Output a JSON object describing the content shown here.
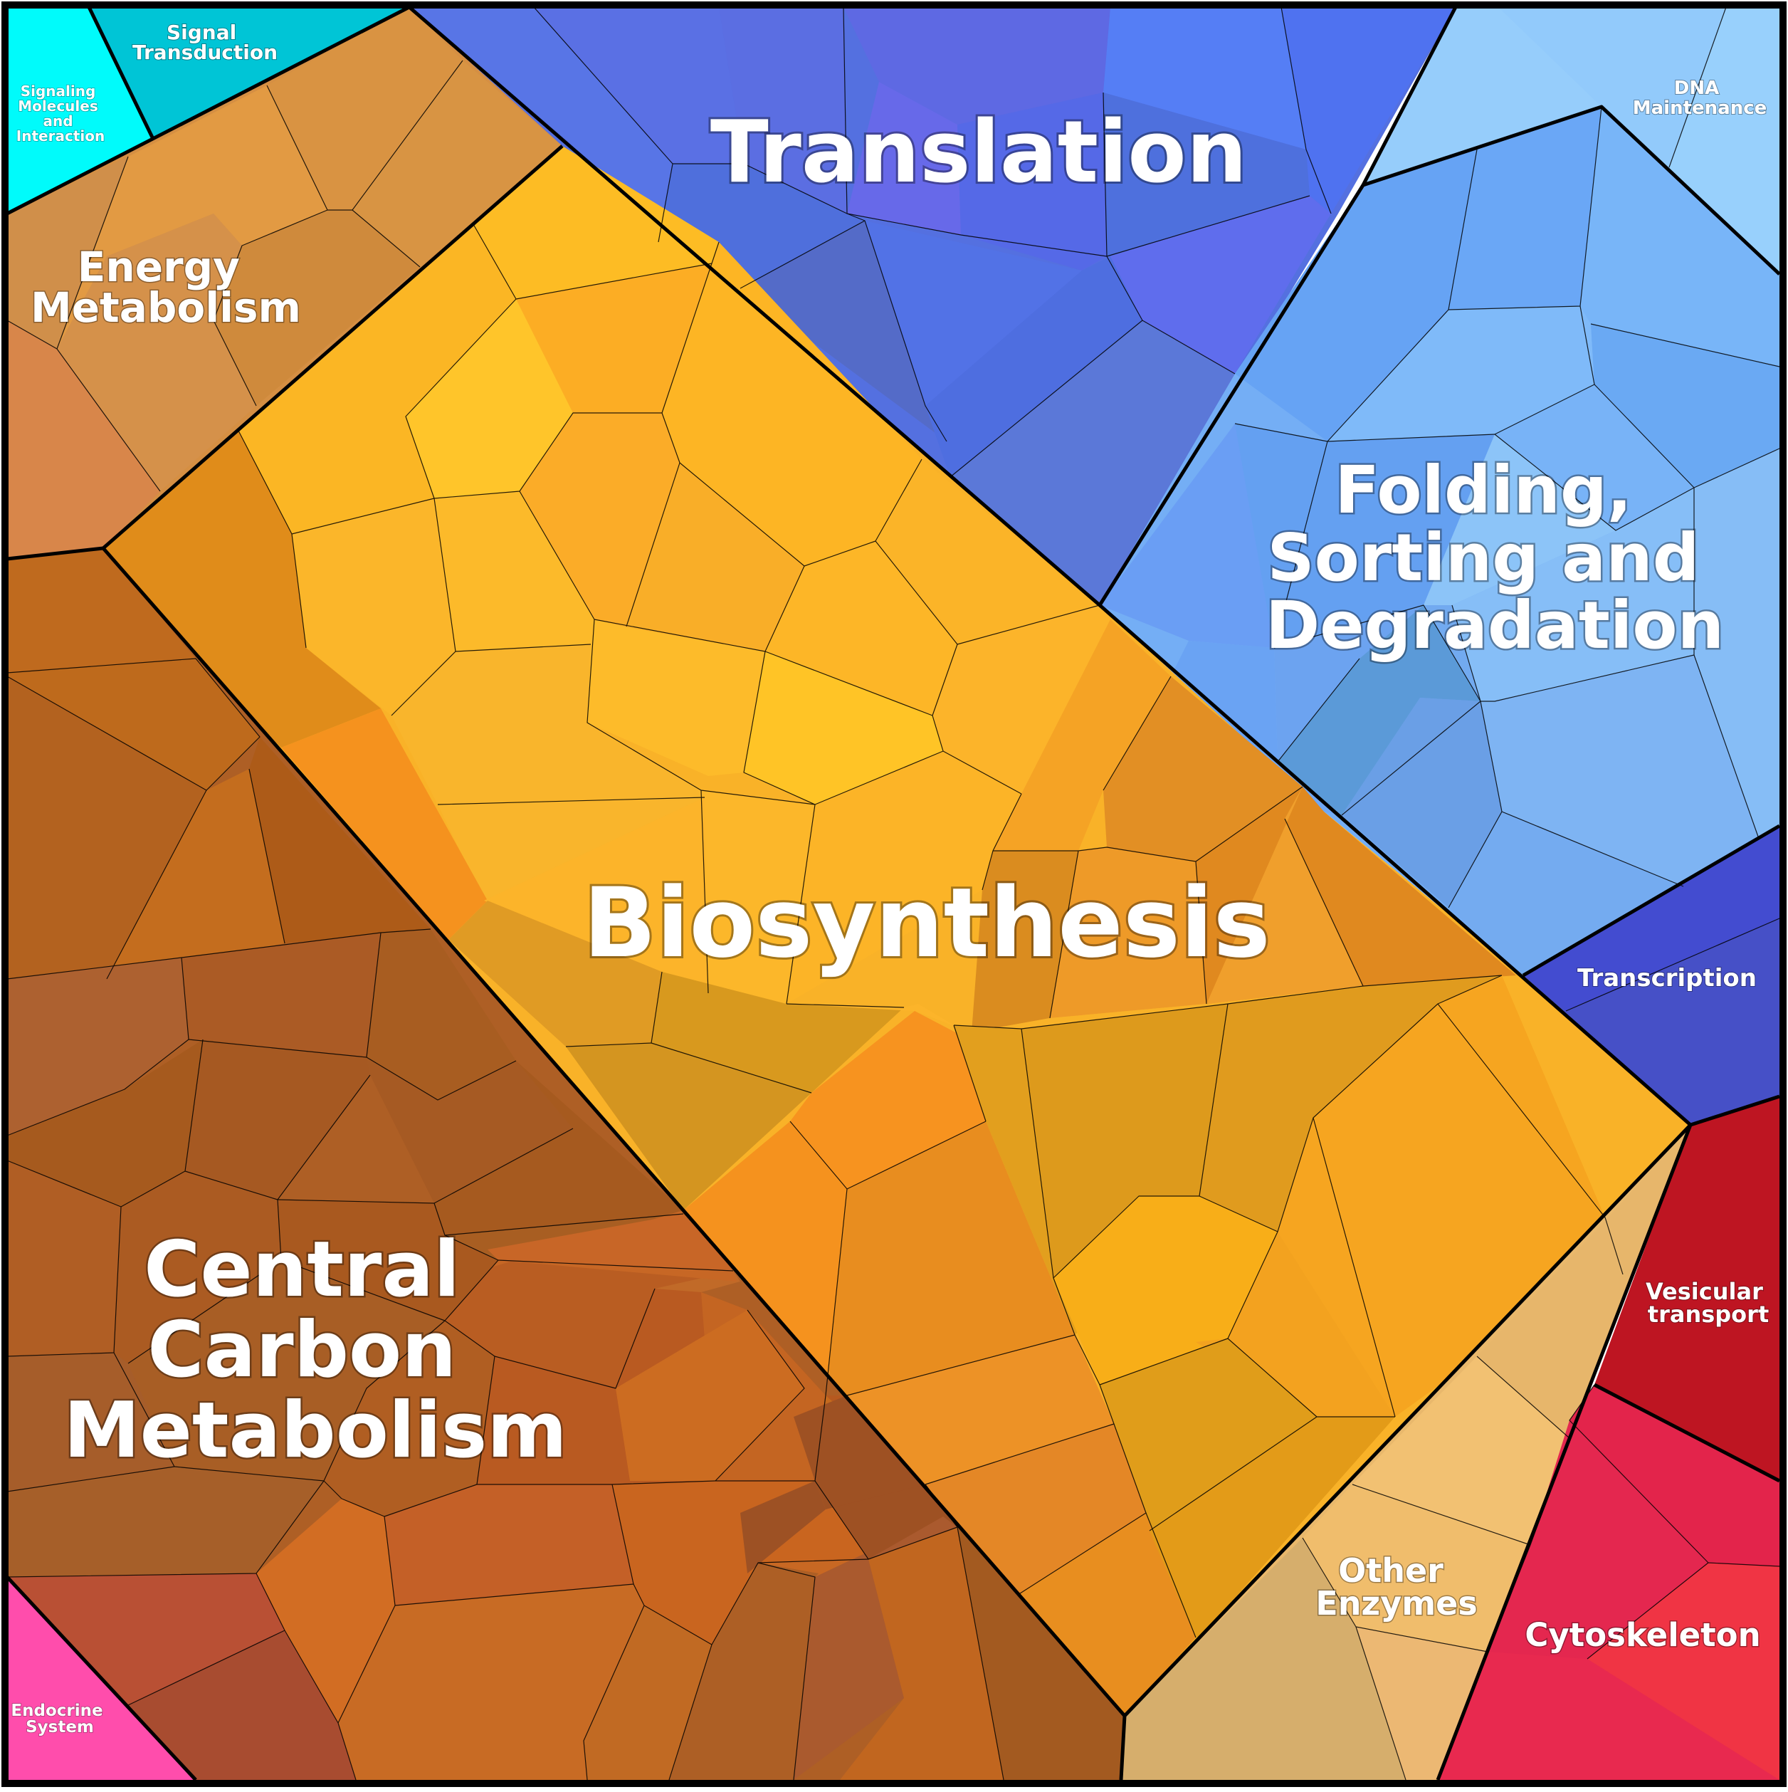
{
  "chart_data": {
    "type": "voronoi-treemap",
    "title": "",
    "categories": [
      {
        "name": "Translation",
        "color": "#5470e0"
      },
      {
        "name": "Folding, Sorting and Degradation",
        "color": "#74aef5"
      },
      {
        "name": "DNA Maintenance",
        "color": "#96cdfb"
      },
      {
        "name": "Signal Transduction",
        "color": "#00c5d6"
      },
      {
        "name": "Signaling Molecules and Interaction",
        "color": "#00fbfb"
      },
      {
        "name": "Energy Metabolism",
        "color": "#d58f43"
      },
      {
        "name": "Biosynthesis",
        "color": "#f9b228"
      },
      {
        "name": "Central Carbon Metabolism",
        "color": "#ae5f25"
      },
      {
        "name": "Transcription",
        "color": "#4650c7"
      },
      {
        "name": "Vesicular transport",
        "color": "#be1522"
      },
      {
        "name": "Cytoskeleton",
        "color": "#e8294f"
      },
      {
        "name": "Other Enzymes",
        "color": "#e9b86c"
      },
      {
        "name": "Endocrine System",
        "color": "#ff4dac"
      }
    ]
  }
}
